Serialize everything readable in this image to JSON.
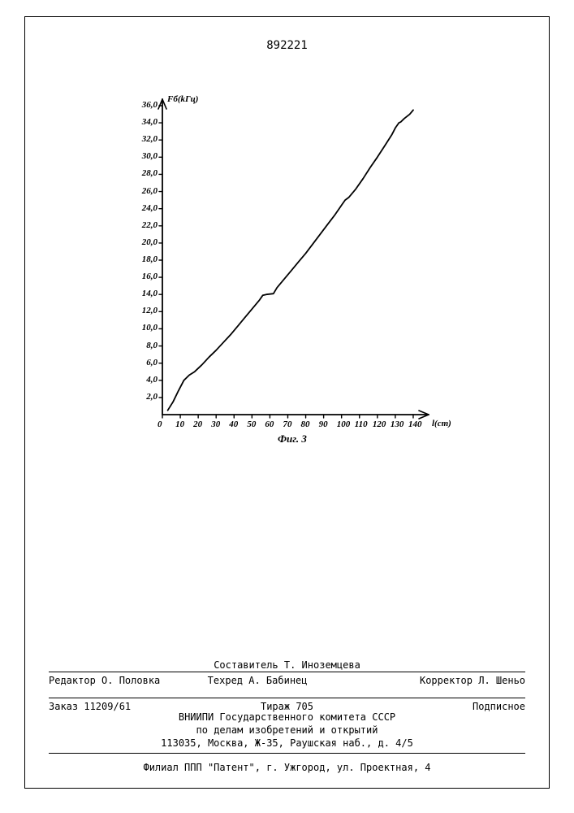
{
  "page_number": "892221",
  "chart": {
    "type": "line",
    "y_axis_label": "Fб(kГц)",
    "x_axis_label": "l(сm)",
    "caption": "Фиг. 3",
    "ylim": [
      0,
      36
    ],
    "xlim": [
      0,
      145
    ],
    "y_ticks": [
      "2,0",
      "4,0",
      "6,0",
      "8,0",
      "10,0",
      "12,0",
      "14,0",
      "16,0",
      "18,0",
      "20,0",
      "22,0",
      "24,0",
      "26,0",
      "28,0",
      "30,0",
      "32,0",
      "34,0",
      "36,0"
    ],
    "y_tick_values": [
      2,
      4,
      6,
      8,
      10,
      12,
      14,
      16,
      18,
      20,
      22,
      24,
      26,
      28,
      30,
      32,
      34,
      36
    ],
    "x_ticks": [
      "0",
      "10",
      "20",
      "30",
      "40",
      "50",
      "60",
      "70",
      "80",
      "90",
      "100",
      "110",
      "120",
      "130",
      "140"
    ],
    "x_tick_values": [
      0,
      10,
      20,
      30,
      40,
      50,
      60,
      70,
      80,
      90,
      100,
      110,
      120,
      130,
      140
    ],
    "line_color": "#000000",
    "line_width": 1.8,
    "background_color": "#ffffff",
    "label_fontsize": 11,
    "tick_fontsize": 11,
    "data_points": [
      [
        3,
        0.5
      ],
      [
        6,
        1.5
      ],
      [
        9,
        2.8
      ],
      [
        12,
        4.0
      ],
      [
        15,
        4.6
      ],
      [
        18,
        5.0
      ],
      [
        22,
        5.8
      ],
      [
        26,
        6.7
      ],
      [
        30,
        7.5
      ],
      [
        34,
        8.4
      ],
      [
        38,
        9.3
      ],
      [
        42,
        10.3
      ],
      [
        46,
        11.3
      ],
      [
        50,
        12.3
      ],
      [
        54,
        13.3
      ],
      [
        56,
        13.9
      ],
      [
        58,
        14.0
      ],
      [
        62,
        14.1
      ],
      [
        64,
        14.8
      ],
      [
        68,
        15.8
      ],
      [
        72,
        16.8
      ],
      [
        76,
        17.8
      ],
      [
        80,
        18.8
      ],
      [
        84,
        19.9
      ],
      [
        88,
        21.0
      ],
      [
        92,
        22.1
      ],
      [
        96,
        23.2
      ],
      [
        100,
        24.4
      ],
      [
        102,
        25.0
      ],
      [
        104,
        25.3
      ],
      [
        108,
        26.3
      ],
      [
        112,
        27.5
      ],
      [
        116,
        28.8
      ],
      [
        120,
        30.0
      ],
      [
        124,
        31.3
      ],
      [
        128,
        32.6
      ],
      [
        130,
        33.4
      ],
      [
        132,
        34.0
      ],
      [
        133,
        34.1
      ],
      [
        135,
        34.5
      ],
      [
        138,
        35.0
      ],
      [
        140,
        35.5
      ]
    ]
  },
  "footer": {
    "compiler": "Составитель Т. Иноземцева",
    "editor": "Редактор О. Половка",
    "techred": "Техред А. Бабинец",
    "corrector": "Корректор Л. Шеньо",
    "order": "Заказ  11209/61",
    "tirazh": "Тираж  705",
    "podpisnoe": "Подписное",
    "org1": "ВНИИПИ Государственного комитета СССР",
    "org2": "по делам изобретений и открытий",
    "address1": "113035, Москва, Ж-35, Раушская наб., д. 4/5",
    "address2": "Филиал ППП \"Патент\", г. Ужгород, ул. Проектная, 4"
  }
}
